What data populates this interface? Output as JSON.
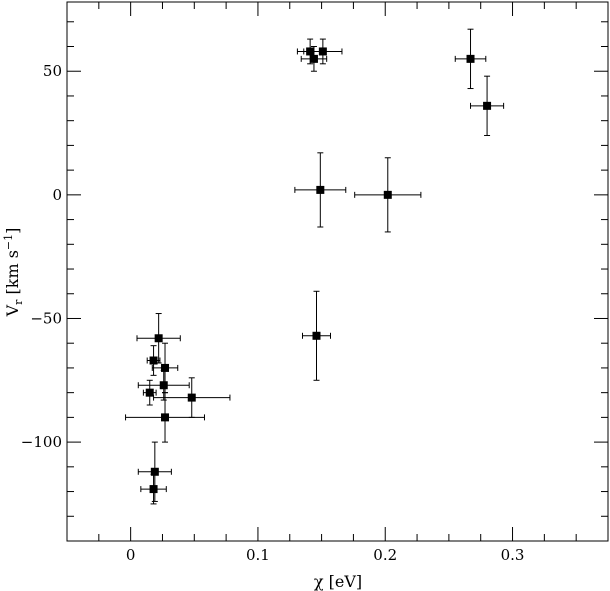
{
  "chart_data": {
    "type": "scatter",
    "title": "",
    "xlabel": "χ [eV]",
    "ylabel_main": "V",
    "ylabel_sub": "r",
    "ylabel_units": " [km s",
    "ylabel_exp": "−1",
    "ylabel_close": "]",
    "xlim": [
      -0.05,
      0.375
    ],
    "ylim": [
      -140,
      78
    ],
    "x_major_ticks": [
      0,
      0.1,
      0.2,
      0.3
    ],
    "x_tick_labels": [
      "0",
      "0.1",
      "0.2",
      "0.3"
    ],
    "x_minor_step": 0.025,
    "y_major_ticks": [
      -100,
      -50,
      0,
      50
    ],
    "y_tick_labels": [
      "−100",
      "−50",
      "0",
      "50"
    ],
    "y_minor_step": 10,
    "grid": false,
    "marker": "square",
    "points": [
      {
        "x": 0.141,
        "y": 58,
        "xerr": 0.01,
        "yerr": 5
      },
      {
        "x": 0.151,
        "y": 58,
        "xerr": 0.015,
        "yerr": 5
      },
      {
        "x": 0.144,
        "y": 55,
        "xerr": 0.01,
        "yerr": 5
      },
      {
        "x": 0.267,
        "y": 55,
        "xerr": 0.012,
        "yerr": 12
      },
      {
        "x": 0.28,
        "y": 36,
        "xerr": 0.013,
        "yerr": 12
      },
      {
        "x": 0.149,
        "y": 2,
        "xerr": 0.02,
        "yerr": 15
      },
      {
        "x": 0.202,
        "y": 0,
        "xerr": 0.026,
        "yerr": 15
      },
      {
        "x": 0.146,
        "y": -57,
        "xerr": 0.011,
        "yerr": 18
      },
      {
        "x": 0.022,
        "y": -58,
        "xerr": 0.017,
        "yerr": 10
      },
      {
        "x": 0.018,
        "y": -67,
        "xerr": 0.005,
        "yerr": 6
      },
      {
        "x": 0.027,
        "y": -70,
        "xerr": 0.01,
        "yerr": 10
      },
      {
        "x": 0.026,
        "y": -77,
        "xerr": 0.02,
        "yerr": 6
      },
      {
        "x": 0.015,
        "y": -80,
        "xerr": 0.005,
        "yerr": 5
      },
      {
        "x": 0.048,
        "y": -82,
        "xerr": 0.03,
        "yerr": 8
      },
      {
        "x": 0.027,
        "y": -90,
        "xerr": 0.031,
        "yerr": 10
      },
      {
        "x": 0.019,
        "y": -112,
        "xerr": 0.013,
        "yerr": 12
      },
      {
        "x": 0.018,
        "y": -119,
        "xerr": 0.01,
        "yerr": 6
      }
    ]
  }
}
